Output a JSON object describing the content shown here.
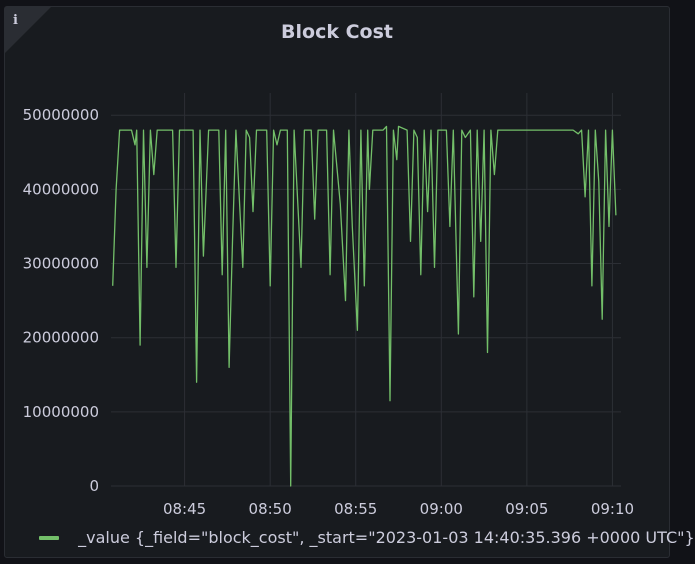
{
  "panel": {
    "title": "Block Cost",
    "info_glyph": "i",
    "info_icon": "info-icon"
  },
  "chart_data": {
    "type": "line",
    "title": "Block Cost",
    "xlabel": "",
    "ylabel": "",
    "grid": true,
    "legend_position": "bottom",
    "line_color": "#73bf69",
    "x_unit": "time (HH:MM)",
    "xlim": [
      "08:40.7",
      "09:10.5"
    ],
    "ylim": [
      0,
      53000000
    ],
    "x_ticks": [
      "08:45",
      "08:50",
      "08:55",
      "09:00",
      "09:05",
      "09:10"
    ],
    "y_ticks": [
      "0",
      "10000000",
      "20000000",
      "30000000",
      "40000000",
      "50000000"
    ],
    "series": [
      {
        "name": "_value {_field=\"block_cost\", _start=\"2023-01-03 14:40:35.396 +0000 UTC\"}",
        "points": [
          [
            "08:40.80",
            27000000
          ],
          [
            "08:41.00",
            40000000
          ],
          [
            "08:41.20",
            48000000
          ],
          [
            "08:41.90",
            48000000
          ],
          [
            "08:42.10",
            46000000
          ],
          [
            "08:42.20",
            48000000
          ],
          [
            "08:42.40",
            19000000
          ],
          [
            "08:42.60",
            48000000
          ],
          [
            "08:42.80",
            29500000
          ],
          [
            "08:43.00",
            48000000
          ],
          [
            "08:43.20",
            42000000
          ],
          [
            "08:43.40",
            48000000
          ],
          [
            "08:44.30",
            48000000
          ],
          [
            "08:44.50",
            29500000
          ],
          [
            "08:44.70",
            48000000
          ],
          [
            "08:45.50",
            48000000
          ],
          [
            "08:45.70",
            14000000
          ],
          [
            "08:45.90",
            48000000
          ],
          [
            "08:46.10",
            31000000
          ],
          [
            "08:46.40",
            48000000
          ],
          [
            "08:47.00",
            48000000
          ],
          [
            "08:47.20",
            28500000
          ],
          [
            "08:47.40",
            48000000
          ],
          [
            "08:47.60",
            16000000
          ],
          [
            "08:47.80",
            33000000
          ],
          [
            "08:48.00",
            48000000
          ],
          [
            "08:48.40",
            29500000
          ],
          [
            "08:48.60",
            48000000
          ],
          [
            "08:48.80",
            47000000
          ],
          [
            "08:49.00",
            37000000
          ],
          [
            "08:49.20",
            48000000
          ],
          [
            "08:49.80",
            48000000
          ],
          [
            "08:50.00",
            27000000
          ],
          [
            "08:50.20",
            48000000
          ],
          [
            "08:50.40",
            46000000
          ],
          [
            "08:50.60",
            48000000
          ],
          [
            "08:51.00",
            48000000
          ],
          [
            "08:51.20",
            0
          ],
          [
            "08:51.40",
            48000000
          ],
          [
            "08:51.80",
            29500000
          ],
          [
            "08:52.00",
            48000000
          ],
          [
            "08:52.40",
            48000000
          ],
          [
            "08:52.60",
            36000000
          ],
          [
            "08:52.80",
            48000000
          ],
          [
            "08:53.30",
            48000000
          ],
          [
            "08:53.50",
            28500000
          ],
          [
            "08:53.70",
            48000000
          ],
          [
            "08:54.10",
            38000000
          ],
          [
            "08:54.40",
            25000000
          ],
          [
            "08:54.60",
            48000000
          ],
          [
            "08:54.80",
            35000000
          ],
          [
            "08:55.10",
            21000000
          ],
          [
            "08:55.30",
            48000000
          ],
          [
            "08:55.50",
            27000000
          ],
          [
            "08:55.70",
            48000000
          ],
          [
            "08:55.80",
            40000000
          ],
          [
            "08:56.00",
            48000000
          ],
          [
            "08:56.60",
            48000000
          ],
          [
            "08:56.80",
            48500000
          ],
          [
            "08:57.00",
            11500000
          ],
          [
            "08:57.20",
            48000000
          ],
          [
            "08:57.40",
            44000000
          ],
          [
            "08:57.50",
            48500000
          ],
          [
            "08:58.00",
            48000000
          ],
          [
            "08:58.20",
            33000000
          ],
          [
            "08:58.40",
            48000000
          ],
          [
            "08:58.60",
            47000000
          ],
          [
            "08:58.80",
            28500000
          ],
          [
            "08:59.00",
            48000000
          ],
          [
            "08:59.20",
            37000000
          ],
          [
            "08:59.40",
            48000000
          ],
          [
            "08:59.60",
            29500000
          ],
          [
            "08:59.80",
            48000000
          ],
          [
            "09:00.30",
            48000000
          ],
          [
            "09:00.50",
            35000000
          ],
          [
            "09:00.70",
            48000000
          ],
          [
            "09:01.00",
            20500000
          ],
          [
            "09:01.20",
            48000000
          ],
          [
            "09:01.40",
            47000000
          ],
          [
            "09:01.70",
            48000000
          ],
          [
            "09:01.90",
            25500000
          ],
          [
            "09:02.10",
            48000000
          ],
          [
            "09:02.30",
            33000000
          ],
          [
            "09:02.50",
            48000000
          ],
          [
            "09:02.70",
            18000000
          ],
          [
            "09:02.90",
            48000000
          ],
          [
            "09:03.10",
            42000000
          ],
          [
            "09:03.30",
            48000000
          ],
          [
            "09:07.70",
            48000000
          ],
          [
            "09:08.00",
            47500000
          ],
          [
            "09:08.20",
            48000000
          ],
          [
            "09:08.40",
            39000000
          ],
          [
            "09:08.60",
            48000000
          ],
          [
            "09:08.80",
            27000000
          ],
          [
            "09:09.00",
            48000000
          ],
          [
            "09:09.20",
            41000000
          ],
          [
            "09:09.40",
            22500000
          ],
          [
            "09:09.60",
            48000000
          ],
          [
            "09:09.80",
            35000000
          ],
          [
            "09:10.00",
            48000000
          ],
          [
            "09:10.20",
            36500000
          ]
        ]
      }
    ]
  }
}
